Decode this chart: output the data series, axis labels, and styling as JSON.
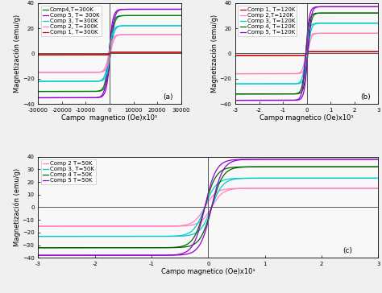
{
  "bg_color": "#f0f0f0",
  "plot_bg": "#f8f8f8",
  "subplot_a": {
    "label": "(a)",
    "xlim": [
      -30000,
      30000
    ],
    "ylim": [
      -40,
      40
    ],
    "yticks": [
      -40,
      -20,
      0,
      20,
      40
    ],
    "xtick_vals": [
      -30000,
      -20000,
      -10000,
      0,
      10000,
      20000,
      30000
    ],
    "xtick_labels": [
      "-30000",
      "-20000",
      "-10000",
      "0",
      "10000",
      "20000",
      "30000"
    ],
    "xlabel": "Campo  magnetico (Oe)x10¹",
    "ylabel": "Magnetización (emu/g)",
    "curves": [
      {
        "label": "Comp4,T=300K",
        "color": "#008000",
        "sat": 30,
        "coer": 300,
        "steep": 0.0006
      },
      {
        "label": "Comp 5, T= 300K",
        "color": "#9400D3",
        "sat": 35,
        "coer": 300,
        "steep": 0.0006
      },
      {
        "label": "Comp 3, T=300K",
        "color": "#00CCCC",
        "sat": 22,
        "coer": 300,
        "steep": 0.0006
      },
      {
        "label": "Comp 2, T=300K",
        "color": "#FF80C0",
        "sat": 15,
        "coer": 300,
        "steep": 0.0006
      },
      {
        "label": "Comp 1, T=300K",
        "color": "#CC0000",
        "sat": 1.0,
        "coer": 150,
        "steep": 0.002
      }
    ]
  },
  "subplot_b": {
    "label": "(b)",
    "xlim": [
      -30000,
      30000
    ],
    "ylim": [
      -40,
      40
    ],
    "yticks": [
      -40,
      -20,
      0,
      20,
      40
    ],
    "xtick_vals": [
      -30000,
      -20000,
      -10000,
      0,
      10000,
      20000,
      30000
    ],
    "xtick_labels": [
      "-3",
      "-2",
      "-1",
      "0",
      "1",
      "2",
      "3"
    ],
    "xlabel": "Campo magnetico (Oe)x10¹",
    "ylabel": "Magnetización (emu/g)",
    "curves": [
      {
        "label": "Comp 1, T=120K",
        "color": "#CC0000",
        "sat": 1.5,
        "coer": 150,
        "steep": 0.002
      },
      {
        "label": "Comp 2,T=120K",
        "color": "#FF80C0",
        "sat": 16,
        "coer": 400,
        "steep": 0.0007
      },
      {
        "label": "Comp 3, T=120K",
        "color": "#00CCCC",
        "sat": 24,
        "coer": 400,
        "steep": 0.0007
      },
      {
        "label": "Comp 4, T=120K",
        "color": "#006400",
        "sat": 32,
        "coer": 400,
        "steep": 0.0007
      },
      {
        "label": "Comp 5, T=120K",
        "color": "#9400D3",
        "sat": 37,
        "coer": 400,
        "steep": 0.0007
      }
    ]
  },
  "subplot_c": {
    "label": "(c)",
    "xlim": [
      -30000,
      30000
    ],
    "ylim": [
      -40,
      40
    ],
    "yticks": [
      -40,
      -30,
      -20,
      -10,
      0,
      10,
      20,
      30,
      40
    ],
    "xtick_vals": [
      -30000,
      -20000,
      -10000,
      0,
      10000,
      20000,
      30000
    ],
    "xtick_labels": [
      "-3",
      "-2",
      "-1",
      "0",
      "1",
      "2",
      "3"
    ],
    "xlabel": "Campo magnetico (Oe)x10¹",
    "ylabel": "Magnetización (emu/g)",
    "curves": [
      {
        "label": "Comp 2 T=50K",
        "color": "#FF80C0",
        "sat": 15,
        "coer": 600,
        "steep": 0.0005
      },
      {
        "label": "Comp 3, T=50K",
        "color": "#00CCCC",
        "sat": 23,
        "coer": 600,
        "steep": 0.0005
      },
      {
        "label": "Comp 4 T=50K",
        "color": "#006400",
        "sat": 32,
        "coer": 600,
        "steep": 0.0005
      },
      {
        "label": "Comp 5 T=50K",
        "color": "#9400D3",
        "sat": 38,
        "coer": 600,
        "steep": 0.0005
      }
    ]
  },
  "font_size": 5.5,
  "legend_font_size": 5,
  "label_font_size": 6,
  "tick_label_size": 5,
  "line_width": 0.9
}
